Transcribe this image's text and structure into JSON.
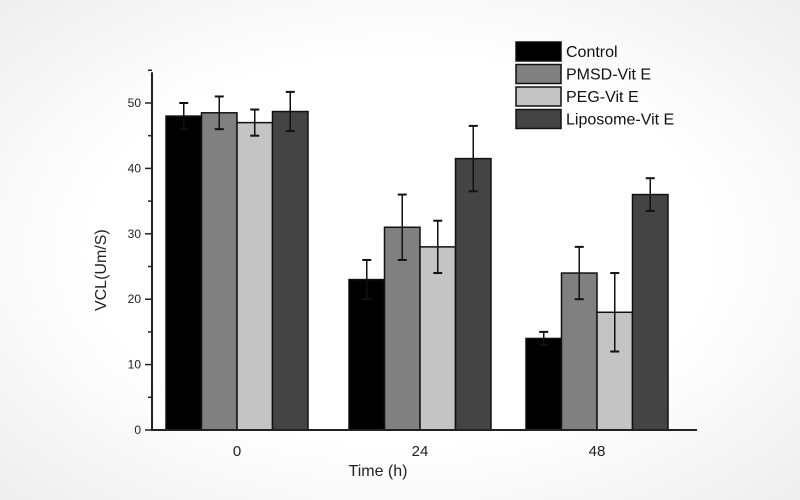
{
  "chart_data": {
    "type": "bar",
    "title": "",
    "xlabel": "Time (h)",
    "ylabel": "VCL(Um/S)",
    "categories": [
      "0",
      "24",
      "48"
    ],
    "ylim": [
      0,
      55
    ],
    "yticks": [
      0,
      10,
      20,
      30,
      40,
      50
    ],
    "grid": false,
    "legend_position": "top-right",
    "series": [
      {
        "name": "Control",
        "color": "#000000",
        "values": [
          48,
          23,
          14
        ],
        "errors": [
          2,
          3,
          1
        ]
      },
      {
        "name": "PMSD-Vit E",
        "color": "#808080",
        "values": [
          48.5,
          31,
          24
        ],
        "errors": [
          2.5,
          5,
          4
        ]
      },
      {
        "name": "PEG-Vit E",
        "color": "#c4c4c4",
        "values": [
          47,
          28,
          18
        ],
        "errors": [
          2,
          4,
          6
        ]
      },
      {
        "name": "Liposome-Vit E",
        "color": "#444444",
        "values": [
          48.7,
          41.5,
          36
        ],
        "errors": [
          3,
          5,
          2.5
        ]
      }
    ]
  }
}
